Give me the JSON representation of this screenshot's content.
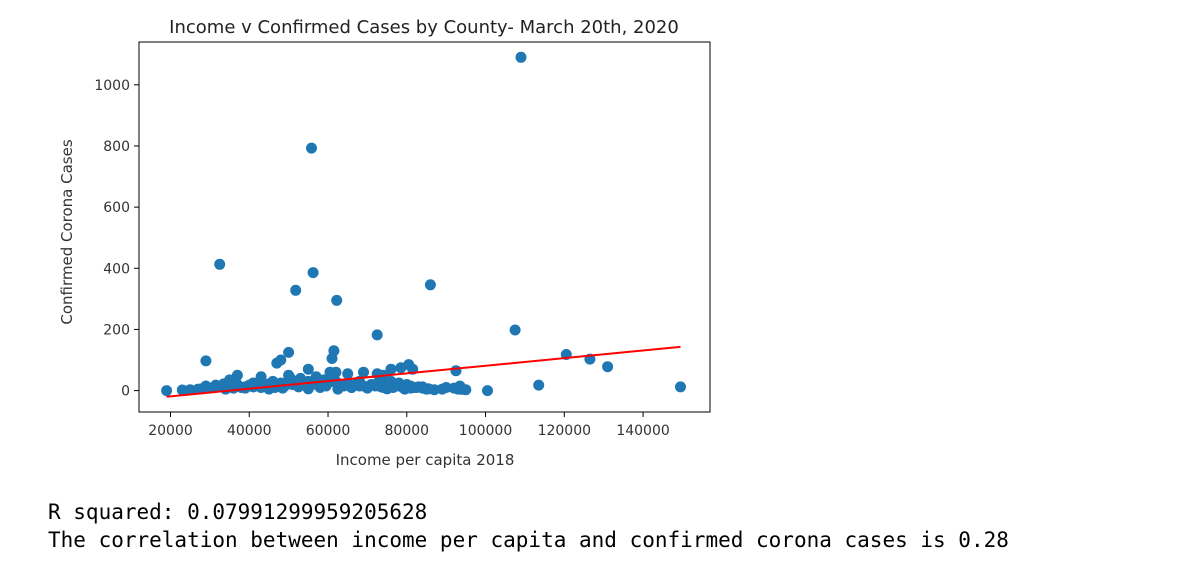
{
  "chart_data": {
    "type": "scatter",
    "title": "Income v Confirmed Cases by County- March 20th, 2020",
    "xlabel": "Income per capita 2018",
    "ylabel": "Confirmed Corona Cases",
    "xlim": [
      12000,
      157000
    ],
    "ylim": [
      -70,
      1140
    ],
    "xticks": [
      20000,
      40000,
      60000,
      80000,
      100000,
      120000,
      140000
    ],
    "yticks": [
      0,
      200,
      400,
      600,
      800,
      1000
    ],
    "grid": false,
    "series": [
      {
        "kind": "points",
        "color": "#1f77b4",
        "x": [
          19000,
          23000,
          25000,
          27000,
          28000,
          30000,
          31000,
          33000,
          34000,
          35000,
          36000,
          37000,
          38000,
          39000,
          40000,
          41000,
          42000,
          43000,
          44000,
          45000,
          46000,
          47000,
          48000,
          49000,
          50000,
          51000,
          52000,
          53000,
          54000,
          55000,
          56000,
          57000,
          58000,
          59000,
          60000,
          61000,
          62000,
          63000,
          64000,
          65000,
          66000,
          67000,
          68000,
          69000,
          70000,
          71000,
          72000,
          73000,
          74000,
          75000,
          76000,
          77000,
          78000,
          79000,
          80000,
          81000,
          82000,
          83000,
          84000,
          85000,
          87000,
          89000,
          90000,
          92000,
          93000,
          94000,
          95000,
          29000,
          31500,
          33500,
          35000,
          37000,
          39000,
          41000,
          43000,
          45000,
          46500,
          47500,
          48500,
          50500,
          52500,
          54000,
          55000,
          57000,
          58000,
          59500,
          61000,
          62500,
          64500,
          66000,
          68000,
          70000,
          72000,
          73500,
          75000,
          76500,
          78000,
          79500,
          81000,
          82500,
          84000,
          85500,
          47000,
          48000,
          50000,
          55000,
          60500,
          61000,
          61500,
          62000,
          65000,
          69000,
          72500,
          74000,
          76000,
          78500,
          80500,
          81500,
          92500,
          93500,
          29000,
          50000,
          72500,
          32500,
          51800,
          55800,
          56200,
          62200,
          86000,
          109000,
          107500,
          120500,
          126500,
          131000,
          113500,
          100500,
          149500
        ],
        "y": [
          0,
          2,
          3,
          5,
          6,
          8,
          10,
          12,
          5,
          15,
          8,
          20,
          10,
          12,
          18,
          25,
          15,
          10,
          20,
          22,
          30,
          18,
          25,
          15,
          35,
          20,
          28,
          40,
          25,
          30,
          20,
          45,
          30,
          35,
          25,
          40,
          30,
          20,
          15,
          25,
          10,
          20,
          30,
          15,
          10,
          20,
          15,
          25,
          10,
          20,
          30,
          15,
          25,
          10,
          20,
          15,
          10,
          12,
          8,
          5,
          3,
          5,
          10,
          8,
          5,
          4,
          3,
          15,
          18,
          22,
          35,
          50,
          8,
          12,
          45,
          5,
          10,
          15,
          8,
          40,
          12,
          18,
          6,
          25,
          10,
          15,
          30,
          5,
          20,
          10,
          15,
          8,
          20,
          12,
          6,
          10,
          15,
          5,
          8,
          10,
          12,
          6,
          90,
          100,
          50,
          70,
          60,
          105,
          130,
          60,
          55,
          60,
          55,
          50,
          70,
          75,
          85,
          70,
          65,
          15,
          97,
          125,
          182,
          413,
          328,
          793,
          386,
          295,
          346,
          1090,
          198,
          118,
          103,
          78,
          18,
          0,
          12
        ]
      },
      {
        "kind": "fit-line",
        "color": "#ff0000",
        "x": [
          19000,
          149500
        ],
        "y": [
          -20,
          143
        ]
      }
    ]
  },
  "output": {
    "r_squared": "R squared: 0.07991299959205628",
    "correlation": "The correlation between income per capita and confirmed corona cases is 0.28"
  }
}
